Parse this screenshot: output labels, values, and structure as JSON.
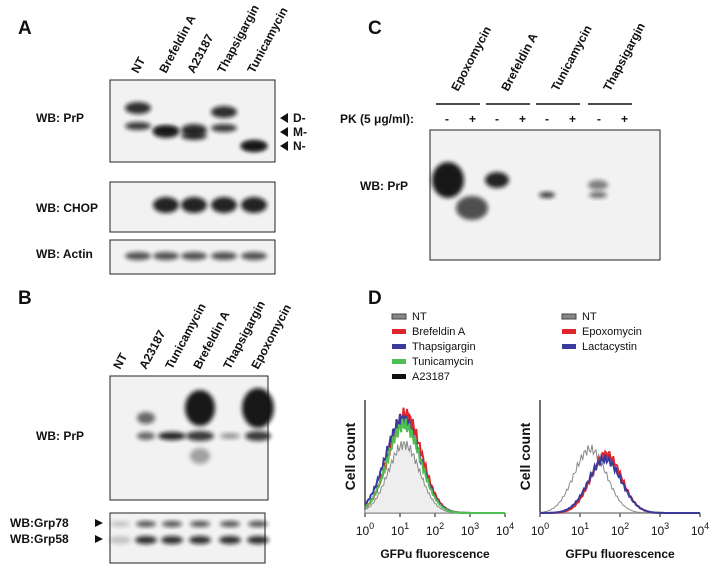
{
  "panels": [
    {
      "label": "A",
      "lanes": [
        "NT",
        "Brefeldin A",
        "A23187",
        "Thapsigargin",
        "Tunicamycin"
      ],
      "blots": [
        "WB: PrP",
        "WB: CHOP",
        "WB: Actin"
      ],
      "bands": [
        "D-",
        "M-",
        "N-"
      ]
    },
    {
      "label": "B",
      "lanes": [
        "NT",
        "A23187",
        "Tunicamycin",
        "Brefeldin A",
        "Thapsigargin",
        "Epoxomycin"
      ],
      "blots": [
        "WB: PrP",
        "WB:Grp78",
        "WB:Grp58"
      ]
    },
    {
      "label": "C",
      "lanes": [
        "Epoxomycin",
        "Brefeldin A",
        "Tunicamycin",
        "Thapsigargin"
      ],
      "pk_label": "PK (5 μg/ml):",
      "pk_signs": [
        "-",
        "+",
        "-",
        "+",
        "-",
        "+",
        "-",
        "+"
      ],
      "blots": [
        "WB: PrP"
      ]
    },
    {
      "label": "D",
      "plots": [
        {
          "legend": [
            "NT",
            "Brefeldin A",
            "Thapsigargin",
            "Tunicamycin",
            "A23187"
          ],
          "y_label": "Cell count",
          "x_label": "GFPu fluorescence",
          "xticks": [
            {
              "base": "10",
              "exp": "0"
            },
            {
              "base": "10",
              "exp": "1"
            },
            {
              "base": "10",
              "exp": "2"
            },
            {
              "base": "10",
              "exp": "3"
            },
            {
              "base": "10",
              "exp": "4"
            }
          ]
        },
        {
          "legend": [
            "NT",
            "Epoxomycin",
            "Lactacystin"
          ],
          "y_label": "Cell count",
          "x_label": "GFPu fluorescence",
          "xticks": [
            {
              "base": "10",
              "exp": "0"
            },
            {
              "base": "10",
              "exp": "1"
            },
            {
              "base": "10",
              "exp": "2"
            },
            {
              "base": "10",
              "exp": "3"
            },
            {
              "base": "10",
              "exp": "4"
            }
          ]
        }
      ]
    }
  ]
}
